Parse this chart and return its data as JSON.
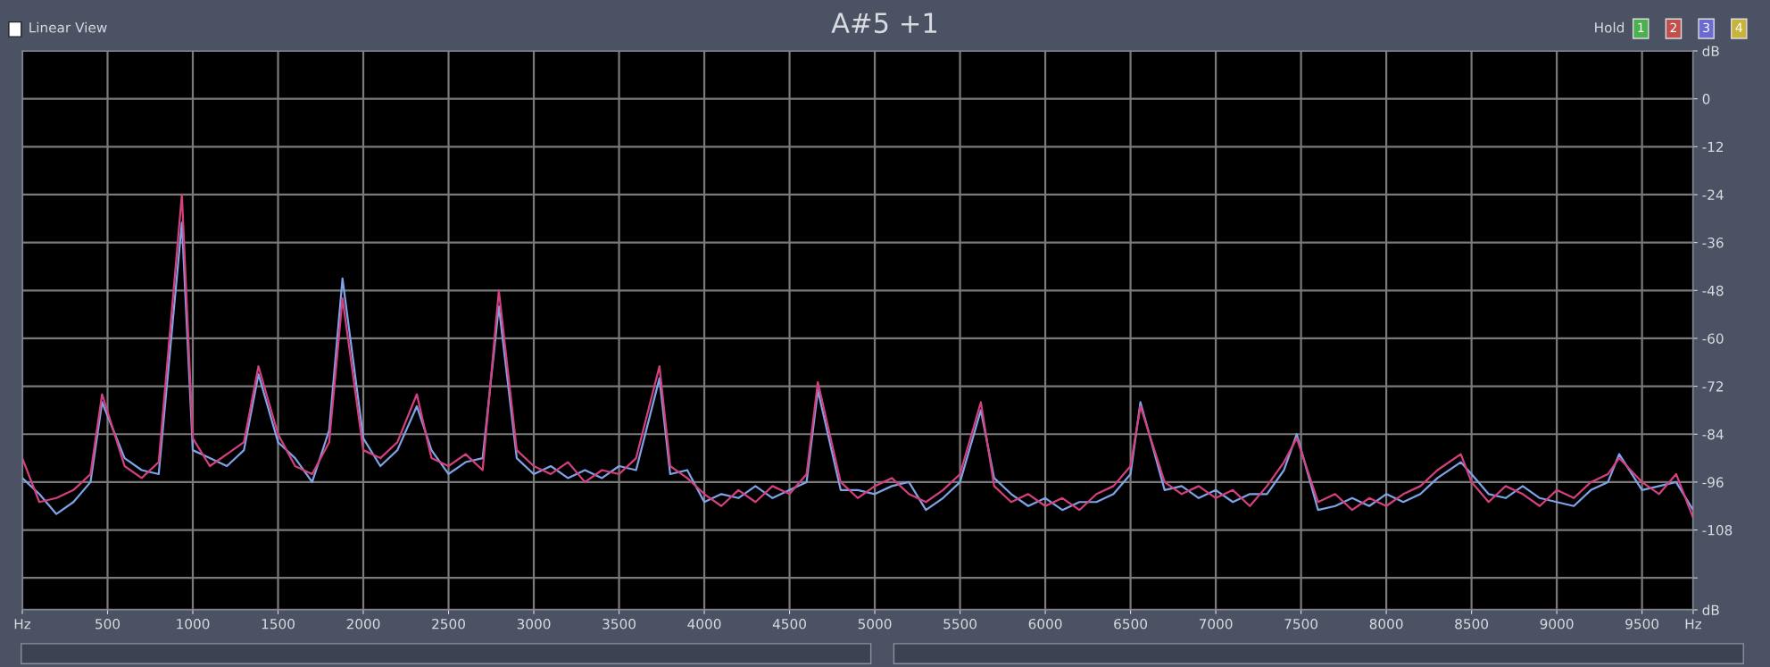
{
  "chart_data": {
    "type": "line",
    "title": "A#5 +1",
    "annotations": [
      "Linear View",
      "Hold",
      "1",
      "2",
      "3",
      "4"
    ],
    "x": [
      0,
      100,
      200,
      300,
      400,
      468,
      600,
      700,
      800,
      936,
      1000,
      1100,
      1200,
      1300,
      1385,
      1500,
      1600,
      1700,
      1800,
      1878,
      2000,
      2100,
      2200,
      2314,
      2400,
      2500,
      2600,
      2700,
      2795,
      2900,
      3000,
      3100,
      3200,
      3300,
      3400,
      3500,
      3600,
      3737,
      3800,
      3900,
      4000,
      4100,
      4200,
      4300,
      4400,
      4500,
      4600,
      4666,
      4800,
      4900,
      5000,
      5100,
      5200,
      5300,
      5400,
      5500,
      5622,
      5700,
      5800,
      5900,
      6000,
      6100,
      6200,
      6300,
      6400,
      6500,
      6558,
      6700,
      6800,
      6900,
      7000,
      7100,
      7200,
      7300,
      7400,
      7475,
      7600,
      7700,
      7800,
      7900,
      8000,
      8100,
      8200,
      8300,
      8437,
      8500,
      8600,
      8700,
      8800,
      8900,
      9000,
      9100,
      9200,
      9300,
      9366,
      9500,
      9600,
      9700,
      9800
    ],
    "series": [
      {
        "color": "#7fa3e6",
        "values": [
          -95,
          -99,
          -104,
          -101,
          -96,
          -76,
          -90,
          -93,
          -94,
          -31,
          -88,
          -90,
          -92,
          -88,
          -69,
          -86,
          -90,
          -96,
          -83,
          -45,
          -85,
          -92,
          -88,
          -77,
          -88,
          -94,
          -91,
          -90,
          -52,
          -90,
          -94,
          -92,
          -95,
          -93,
          -95,
          -92,
          -93,
          -70,
          -94,
          -93,
          -101,
          -99,
          -100,
          -97,
          -100,
          -98,
          -96,
          -73,
          -98,
          -98,
          -99,
          -97,
          -96,
          -103,
          -100,
          -96,
          -78,
          -95,
          -99,
          -102,
          -100,
          -103,
          -101,
          -101,
          -99,
          -94,
          -76,
          -98,
          -97,
          -100,
          -98,
          -101,
          -99,
          -99,
          -93,
          -84,
          -103,
          -102,
          -100,
          -102,
          -99,
          -101,
          -99,
          -95,
          -91,
          -94,
          -99,
          -100,
          -97,
          -100,
          -101,
          -102,
          -98,
          -96,
          -89,
          -98,
          -97,
          -96,
          -103
        ]
      },
      {
        "color": "#d4407e",
        "values": [
          -90,
          -101,
          -100,
          -98,
          -94,
          -74,
          -92,
          -95,
          -91,
          -24,
          -85,
          -92,
          -89,
          -86,
          -67,
          -84,
          -92,
          -94,
          -86,
          -50,
          -88,
          -90,
          -86,
          -74,
          -90,
          -92,
          -89,
          -93,
          -48,
          -88,
          -92,
          -94,
          -91,
          -96,
          -93,
          -94,
          -90,
          -67,
          -92,
          -95,
          -99,
          -102,
          -98,
          -101,
          -97,
          -99,
          -94,
          -71,
          -96,
          -100,
          -97,
          -95,
          -99,
          -101,
          -98,
          -94,
          -76,
          -97,
          -101,
          -99,
          -102,
          -100,
          -103,
          -99,
          -97,
          -92,
          -77,
          -96,
          -99,
          -97,
          -100,
          -98,
          -102,
          -97,
          -91,
          -85,
          -101,
          -99,
          -103,
          -100,
          -102,
          -99,
          -97,
          -93,
          -89,
          -96,
          -101,
          -97,
          -99,
          -102,
          -98,
          -100,
          -96,
          -94,
          -90,
          -96,
          -99,
          -94,
          -105
        ]
      }
    ],
    "xlim": [
      0,
      9800
    ],
    "xticks": [
      {
        "value": 0,
        "label": "Hz"
      },
      500,
      1000,
      1500,
      2000,
      2500,
      3000,
      3500,
      4000,
      4500,
      5000,
      5500,
      6000,
      6500,
      7000,
      7500,
      8000,
      8500,
      9000,
      9500,
      {
        "value": 9800,
        "label": "Hz"
      }
    ],
    "ylim": [
      -128,
      12
    ],
    "yticks": [
      {
        "value": 12,
        "label": "dB"
      },
      0,
      -12,
      -24,
      -36,
      -48,
      -60,
      -72,
      -84,
      -96,
      -108,
      {
        "value": -120,
        "label": null
      },
      {
        "value": -128,
        "label": "dB"
      }
    ],
    "grid": true,
    "marker": "none",
    "line_style": "solid"
  }
}
